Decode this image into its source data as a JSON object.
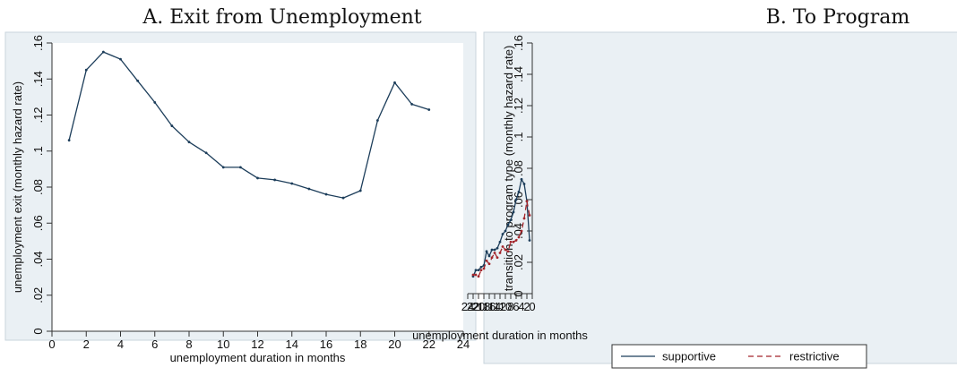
{
  "chart_data": [
    {
      "type": "line",
      "title": "A. Exit from Unemployment",
      "xlabel": "unemployment duration in months",
      "ylabel": "unemployment exit (monthly hazard rate)",
      "xlim": [
        0,
        24
      ],
      "ylim": [
        0,
        0.16
      ],
      "x_ticks": [
        0,
        2,
        4,
        6,
        8,
        10,
        12,
        14,
        16,
        18,
        20,
        22,
        24
      ],
      "x_tick_labels": [
        "0",
        "2",
        "4",
        "6",
        "8",
        "10",
        "12",
        "14",
        "16",
        "18",
        "20",
        "22",
        "24"
      ],
      "y_ticks": [
        0,
        0.02,
        0.04,
        0.06,
        0.08,
        0.1,
        0.12,
        0.14,
        0.16
      ],
      "y_tick_labels": [
        "0",
        ".02",
        ".04",
        ".06",
        ".08",
        ".1",
        ".12",
        ".14",
        ".16"
      ],
      "grid": false,
      "colors": {
        "plot_background": "#eaf0f4",
        "panel_border": "#c9d4dc",
        "axis": "#333333"
      },
      "series": [
        {
          "color": "#1c3d5a",
          "dash": "solid",
          "x": [
            1,
            2,
            3,
            4,
            5,
            6,
            7,
            8,
            9,
            10,
            11,
            12,
            13,
            14,
            15,
            16,
            17,
            18,
            19,
            20,
            21,
            22
          ],
          "values": [
            0.106,
            0.145,
            0.155,
            0.151,
            0.139,
            0.127,
            0.114,
            0.105,
            0.099,
            0.091,
            0.091,
            0.085,
            0.084,
            0.082,
            0.079,
            0.076,
            0.074,
            0.078,
            0.117,
            0.138,
            0.126,
            0.123
          ]
        }
      ]
    },
    {
      "type": "line",
      "title": "B. To Program",
      "xlabel": "unemployment duration in months",
      "ylabel": "transition to program type (monthly hazard rate)",
      "xlim": [
        0,
        24
      ],
      "ylim": [
        0,
        0.16
      ],
      "x_ticks": [
        0,
        2,
        4,
        6,
        8,
        10,
        12,
        14,
        16,
        18,
        20,
        22,
        24
      ],
      "x_tick_labels": [
        "0",
        "2",
        "4",
        "6",
        "8",
        "10",
        "12",
        "14",
        "16",
        "18",
        "20",
        "22",
        "24"
      ],
      "y_ticks": [
        0,
        0.02,
        0.04,
        0.06,
        0.08,
        0.1,
        0.12,
        0.14,
        0.16
      ],
      "y_tick_labels": [
        "0",
        ".02",
        ".04",
        ".06",
        ".08",
        ".1",
        ".12",
        ".14",
        ".16"
      ],
      "grid": false,
      "legend_position": "bottom",
      "colors": {
        "plot_background": "#eaf0f4",
        "panel_border": "#c9d4dc",
        "axis": "#333333"
      },
      "series": [
        {
          "name": "supportive",
          "color": "#1c3d5a",
          "dash": "solid",
          "x": [
            1,
            2,
            3,
            4,
            5,
            6,
            7,
            8,
            9,
            10,
            11,
            12,
            13,
            14,
            15,
            16,
            17,
            18,
            19,
            20,
            21,
            22
          ],
          "values": [
            0.034,
            0.059,
            0.07,
            0.073,
            0.065,
            0.06,
            0.052,
            0.047,
            0.044,
            0.04,
            0.038,
            0.033,
            0.029,
            0.028,
            0.028,
            0.024,
            0.027,
            0.018,
            0.017,
            0.015,
            0.015,
            0.011
          ]
        },
        {
          "name": "restrictive",
          "color": "#a3242a",
          "dash": "dashed",
          "x": [
            1,
            2,
            3,
            4,
            5,
            6,
            7,
            8,
            9,
            10,
            11,
            12,
            13,
            14,
            15,
            16,
            17,
            18,
            19,
            20,
            21,
            22
          ],
          "values": [
            0.05,
            0.059,
            0.048,
            0.04,
            0.036,
            0.034,
            0.033,
            0.033,
            0.027,
            0.028,
            0.03,
            0.026,
            0.023,
            0.026,
            0.023,
            0.019,
            0.021,
            0.016,
            0.015,
            0.011,
            0.012,
            0.012
          ]
        }
      ]
    }
  ]
}
